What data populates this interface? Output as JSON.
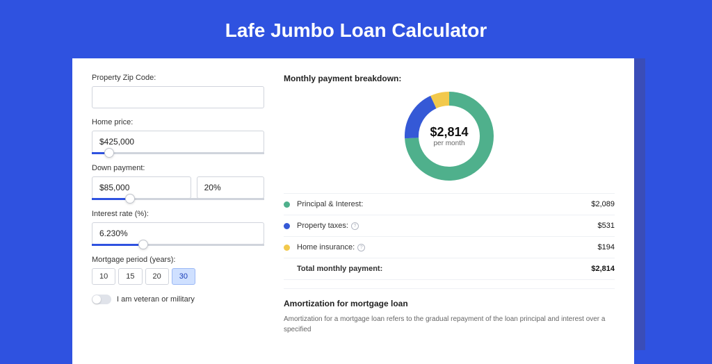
{
  "page_title": "Lafe Jumbo Loan Calculator",
  "colors": {
    "page_bg": "#2f52e0",
    "shadow_bg": "#3a4db8",
    "card_bg": "#ffffff",
    "accent": "#2f52e0"
  },
  "form": {
    "zip": {
      "label": "Property Zip Code:",
      "value": ""
    },
    "home_price": {
      "label": "Home price:",
      "value": "$425,000",
      "slider_pct": 10
    },
    "down_payment": {
      "label": "Down payment:",
      "value": "$85,000",
      "pct_value": "20%",
      "slider_pct": 22
    },
    "interest_rate": {
      "label": "Interest rate (%):",
      "value": "6.230%",
      "slider_pct": 30
    },
    "period": {
      "label": "Mortgage period (years):",
      "options": [
        "10",
        "15",
        "20",
        "30"
      ],
      "selected": "30"
    },
    "veteran": {
      "label": "I am veteran or military",
      "on": false
    }
  },
  "breakdown": {
    "title": "Monthly payment breakdown:",
    "center_amount": "$2,814",
    "center_sub": "per month",
    "donut": {
      "size": 128,
      "thickness": 20,
      "slices": [
        {
          "label": "Principal & Interest:",
          "value": "$2,089",
          "pct": 74.2,
          "color": "#4fb08c"
        },
        {
          "label": "Property taxes:",
          "value": "$531",
          "pct": 18.9,
          "color": "#3559d6",
          "info": true
        },
        {
          "label": "Home insurance:",
          "value": "$194",
          "pct": 6.9,
          "color": "#f2c94c",
          "info": true
        }
      ]
    },
    "total": {
      "label": "Total monthly payment:",
      "value": "$2,814"
    }
  },
  "amortization": {
    "title": "Amortization for mortgage loan",
    "text": "Amortization for a mortgage loan refers to the gradual repayment of the loan principal and interest over a specified"
  }
}
